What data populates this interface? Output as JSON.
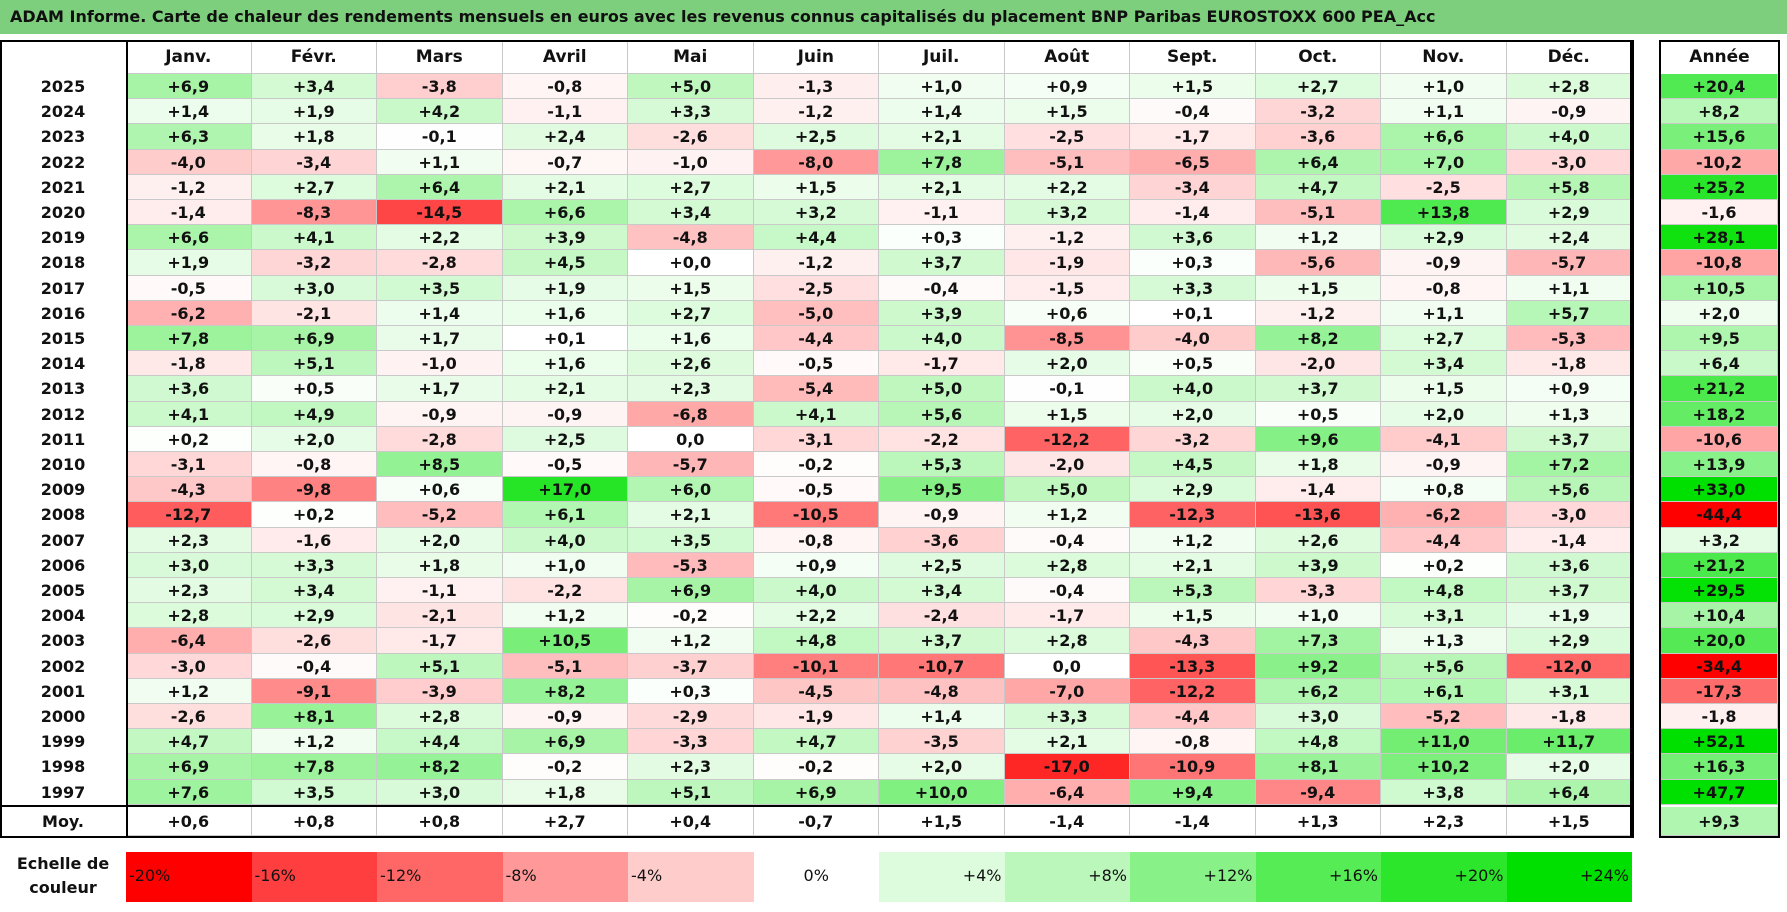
{
  "title": "ADAM Informe. Carte de chaleur des rendements mensuels en euros avec les revenus connus capitalisés du placement BNP Paribas EUROSTOXX 600 PEA_Acc",
  "chart_data": {
    "type": "heatmap",
    "title": "ADAM Informe. Carte de chaleur des rendements mensuels en euros avec les revenus connus capitalisés du placement BNP Paribas EUROSTOXX 600 PEA_Acc",
    "columns": [
      "Janv.",
      "Févr.",
      "Mars",
      "Avril",
      "Mai",
      "Juin",
      "Juil.",
      "Août",
      "Sept.",
      "Oct.",
      "Nov.",
      "Déc."
    ],
    "annual_header": "Année",
    "rows": [
      {
        "label": "2025",
        "values": [
          "+6,9",
          "+3,4",
          "-3,8",
          "-0,8",
          "+5,0",
          "-1,3",
          "+1,0",
          "+0,9",
          "+1,5",
          "+2,7",
          "+1,0",
          "+2,8"
        ],
        "annual": "+20,4"
      },
      {
        "label": "2024",
        "values": [
          "+1,4",
          "+1,9",
          "+4,2",
          "-1,1",
          "+3,3",
          "-1,2",
          "+1,4",
          "+1,5",
          "-0,4",
          "-3,2",
          "+1,1",
          "-0,9"
        ],
        "annual": "+8,2"
      },
      {
        "label": "2023",
        "values": [
          "+6,3",
          "+1,8",
          "-0,1",
          "+2,4",
          "-2,6",
          "+2,5",
          "+2,1",
          "-2,5",
          "-1,7",
          "-3,6",
          "+6,6",
          "+4,0"
        ],
        "annual": "+15,6"
      },
      {
        "label": "2022",
        "values": [
          "-4,0",
          "-3,4",
          "+1,1",
          "-0,7",
          "-1,0",
          "-8,0",
          "+7,8",
          "-5,1",
          "-6,5",
          "+6,4",
          "+7,0",
          "-3,0"
        ],
        "annual": "-10,2"
      },
      {
        "label": "2021",
        "values": [
          "-1,2",
          "+2,7",
          "+6,4",
          "+2,1",
          "+2,7",
          "+1,5",
          "+2,1",
          "+2,2",
          "-3,4",
          "+4,7",
          "-2,5",
          "+5,8"
        ],
        "annual": "+25,2"
      },
      {
        "label": "2020",
        "values": [
          "-1,4",
          "-8,3",
          "-14,5",
          "+6,6",
          "+3,4",
          "+3,2",
          "-1,1",
          "+3,2",
          "-1,4",
          "-5,1",
          "+13,8",
          "+2,9"
        ],
        "annual": "-1,6"
      },
      {
        "label": "2019",
        "values": [
          "+6,6",
          "+4,1",
          "+2,2",
          "+3,9",
          "-4,8",
          "+4,4",
          "+0,3",
          "-1,2",
          "+3,6",
          "+1,2",
          "+2,9",
          "+2,4"
        ],
        "annual": "+28,1"
      },
      {
        "label": "2018",
        "values": [
          "+1,9",
          "-3,2",
          "-2,8",
          "+4,5",
          "+0,0",
          "-1,2",
          "+3,7",
          "-1,9",
          "+0,3",
          "-5,6",
          "-0,9",
          "-5,7"
        ],
        "annual": "-10,8"
      },
      {
        "label": "2017",
        "values": [
          "-0,5",
          "+3,0",
          "+3,5",
          "+1,9",
          "+1,5",
          "-2,5",
          "-0,4",
          "-1,5",
          "+3,3",
          "+1,5",
          "-0,8",
          "+1,1"
        ],
        "annual": "+10,5"
      },
      {
        "label": "2016",
        "values": [
          "-6,2",
          "-2,1",
          "+1,4",
          "+1,6",
          "+2,7",
          "-5,0",
          "+3,9",
          "+0,6",
          "+0,1",
          "-1,2",
          "+1,1",
          "+5,7"
        ],
        "annual": "+2,0"
      },
      {
        "label": "2015",
        "values": [
          "+7,8",
          "+6,9",
          "+1,7",
          "+0,1",
          "+1,6",
          "-4,4",
          "+4,0",
          "-8,5",
          "-4,0",
          "+8,2",
          "+2,7",
          "-5,3"
        ],
        "annual": "+9,5"
      },
      {
        "label": "2014",
        "values": [
          "-1,8",
          "+5,1",
          "-1,0",
          "+1,6",
          "+2,6",
          "-0,5",
          "-1,7",
          "+2,0",
          "+0,5",
          "-2,0",
          "+3,4",
          "-1,8"
        ],
        "annual": "+6,4"
      },
      {
        "label": "2013",
        "values": [
          "+3,6",
          "+0,5",
          "+1,7",
          "+2,1",
          "+2,3",
          "-5,4",
          "+5,0",
          "-0,1",
          "+4,0",
          "+3,7",
          "+1,5",
          "+0,9"
        ],
        "annual": "+21,2"
      },
      {
        "label": "2012",
        "values": [
          "+4,1",
          "+4,9",
          "-0,9",
          "-0,9",
          "-6,8",
          "+4,1",
          "+5,6",
          "+1,5",
          "+2,0",
          "+0,5",
          "+2,0",
          "+1,3"
        ],
        "annual": "+18,2"
      },
      {
        "label": "2011",
        "values": [
          "+0,2",
          "+2,0",
          "-2,8",
          "+2,5",
          "0,0",
          "-3,1",
          "-2,2",
          "-12,2",
          "-3,2",
          "+9,6",
          "-4,1",
          "+3,7"
        ],
        "annual": "-10,6"
      },
      {
        "label": "2010",
        "values": [
          "-3,1",
          "-0,8",
          "+8,5",
          "-0,5",
          "-5,7",
          "-0,2",
          "+5,3",
          "-2,0",
          "+4,5",
          "+1,8",
          "-0,9",
          "+7,2"
        ],
        "annual": "+13,9"
      },
      {
        "label": "2009",
        "values": [
          "-4,3",
          "-9,8",
          "+0,6",
          "+17,0",
          "+6,0",
          "-0,5",
          "+9,5",
          "+5,0",
          "+2,9",
          "-1,4",
          "+0,8",
          "+5,6"
        ],
        "annual": "+33,0"
      },
      {
        "label": "2008",
        "values": [
          "-12,7",
          "+0,2",
          "-5,2",
          "+6,1",
          "+2,1",
          "-10,5",
          "-0,9",
          "+1,2",
          "-12,3",
          "-13,6",
          "-6,2",
          "-3,0"
        ],
        "annual": "-44,4"
      },
      {
        "label": "2007",
        "values": [
          "+2,3",
          "-1,6",
          "+2,0",
          "+4,0",
          "+3,5",
          "-0,8",
          "-3,6",
          "-0,4",
          "+1,2",
          "+2,6",
          "-4,4",
          "-1,4"
        ],
        "annual": "+3,2"
      },
      {
        "label": "2006",
        "values": [
          "+3,0",
          "+3,3",
          "+1,8",
          "+1,0",
          "-5,3",
          "+0,9",
          "+2,5",
          "+2,8",
          "+2,1",
          "+3,9",
          "+0,2",
          "+3,6"
        ],
        "annual": "+21,2"
      },
      {
        "label": "2005",
        "values": [
          "+2,3",
          "+3,4",
          "-1,1",
          "-2,2",
          "+6,9",
          "+4,0",
          "+3,4",
          "-0,4",
          "+5,3",
          "-3,3",
          "+4,8",
          "+3,7"
        ],
        "annual": "+29,5"
      },
      {
        "label": "2004",
        "values": [
          "+2,8",
          "+2,9",
          "-2,1",
          "+1,2",
          "-0,2",
          "+2,2",
          "-2,4",
          "-1,7",
          "+1,5",
          "+1,0",
          "+3,1",
          "+1,9"
        ],
        "annual": "+10,4"
      },
      {
        "label": "2003",
        "values": [
          "-6,4",
          "-2,6",
          "-1,7",
          "+10,5",
          "+1,2",
          "+4,8",
          "+3,7",
          "+2,8",
          "-4,3",
          "+7,3",
          "+1,3",
          "+2,9"
        ],
        "annual": "+20,0"
      },
      {
        "label": "2002",
        "values": [
          "-3,0",
          "-0,4",
          "+5,1",
          "-5,1",
          "-3,7",
          "-10,1",
          "-10,7",
          "0,0",
          "-13,3",
          "+9,2",
          "+5,6",
          "-12,0"
        ],
        "annual": "-34,4"
      },
      {
        "label": "2001",
        "values": [
          "+1,2",
          "-9,1",
          "-3,9",
          "+8,2",
          "+0,3",
          "-4,5",
          "-4,8",
          "-7,0",
          "-12,2",
          "+6,2",
          "+6,1",
          "+3,1"
        ],
        "annual": "-17,3"
      },
      {
        "label": "2000",
        "values": [
          "-2,6",
          "+8,1",
          "+2,8",
          "-0,9",
          "-2,9",
          "-1,9",
          "+1,4",
          "+3,3",
          "-4,4",
          "+3,0",
          "-5,2",
          "-1,8"
        ],
        "annual": "-1,8"
      },
      {
        "label": "1999",
        "values": [
          "+4,7",
          "+1,2",
          "+4,4",
          "+6,9",
          "-3,3",
          "+4,7",
          "-3,5",
          "+2,1",
          "-0,8",
          "+4,8",
          "+11,0",
          "+11,7"
        ],
        "annual": "+52,1"
      },
      {
        "label": "1998",
        "values": [
          "+6,9",
          "+7,8",
          "+8,2",
          "-0,2",
          "+2,3",
          "-0,2",
          "+2,0",
          "-17,0",
          "-10,9",
          "+8,1",
          "+10,2",
          "+2,0"
        ],
        "annual": "+16,3"
      },
      {
        "label": "1997",
        "values": [
          "+7,6",
          "+3,5",
          "+3,0",
          "+1,8",
          "+5,1",
          "+6,9",
          "+10,0",
          "-6,4",
          "+9,4",
          "-9,4",
          "+3,8",
          "+6,4"
        ],
        "annual": "+47,7"
      }
    ],
    "average": {
      "label": "Moy.",
      "values": [
        "+0,6",
        "+0,8",
        "+0,8",
        "+2,7",
        "+0,4",
        "-0,7",
        "+1,5",
        "-1,4",
        "-1,4",
        "+1,3",
        "+2,3",
        "+1,5"
      ],
      "annual": "+9,3"
    },
    "scale_label": "Echelle de couleur",
    "scale": [
      {
        "text": "-20%",
        "value": -20,
        "color": "#ff0000"
      },
      {
        "text": "-16%",
        "value": -16,
        "color": "#ff3f3f"
      },
      {
        "text": "-12%",
        "value": -12,
        "color": "#ff6666"
      },
      {
        "text": "-8%",
        "value": -8,
        "color": "#ff9999"
      },
      {
        "text": "-4%",
        "value": -4,
        "color": "#ffcccc"
      },
      {
        "text": "0%",
        "value": 0,
        "color": "#ffffff"
      },
      {
        "text": "+4%",
        "value": 4,
        "color": "#ddfbdd"
      },
      {
        "text": "+8%",
        "value": 8,
        "color": "#bbf7bb"
      },
      {
        "text": "+12%",
        "value": 12,
        "color": "#88f288"
      },
      {
        "text": "+16%",
        "value": 16,
        "color": "#55ec55"
      },
      {
        "text": "+20%",
        "value": 20,
        "color": "#2be62b"
      },
      {
        "text": "+24%",
        "value": 24,
        "color": "#00e000"
      }
    ]
  }
}
